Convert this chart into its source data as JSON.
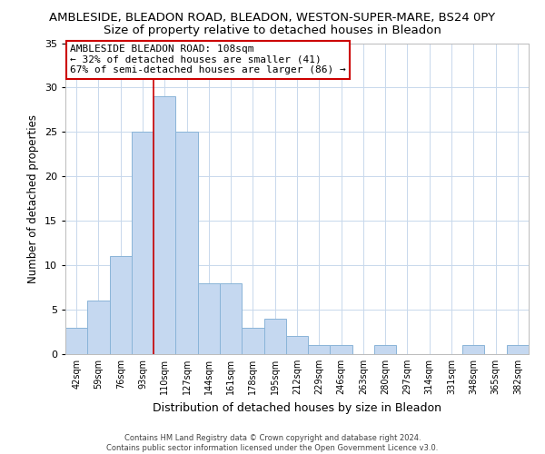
{
  "title": "AMBLESIDE, BLEADON ROAD, BLEADON, WESTON-SUPER-MARE, BS24 0PY",
  "subtitle": "Size of property relative to detached houses in Bleadon",
  "xlabel": "Distribution of detached houses by size in Bleadon",
  "ylabel": "Number of detached properties",
  "bar_color": "#c5d8f0",
  "bar_edge_color": "#8ab4d8",
  "bin_labels": [
    "42sqm",
    "59sqm",
    "76sqm",
    "93sqm",
    "110sqm",
    "127sqm",
    "144sqm",
    "161sqm",
    "178sqm",
    "195sqm",
    "212sqm",
    "229sqm",
    "246sqm",
    "263sqm",
    "280sqm",
    "297sqm",
    "314sqm",
    "331sqm",
    "348sqm",
    "365sqm",
    "382sqm"
  ],
  "bar_values": [
    3,
    6,
    11,
    25,
    29,
    25,
    8,
    8,
    3,
    4,
    2,
    1,
    1,
    0,
    1,
    0,
    0,
    0,
    1,
    0,
    1
  ],
  "ylim": [
    0,
    35
  ],
  "yticks": [
    0,
    5,
    10,
    15,
    20,
    25,
    30,
    35
  ],
  "vline_index": 4,
  "vline_color": "#cc0000",
  "annotation_title": "AMBLESIDE BLEADON ROAD: 108sqm",
  "annotation_line1": "← 32% of detached houses are smaller (41)",
  "annotation_line2": "67% of semi-detached houses are larger (86) →",
  "footer_line1": "Contains HM Land Registry data © Crown copyright and database right 2024.",
  "footer_line2": "Contains public sector information licensed under the Open Government Licence v3.0.",
  "title_fontsize": 9.5,
  "subtitle_fontsize": 9.5,
  "background_color": "#ffffff"
}
